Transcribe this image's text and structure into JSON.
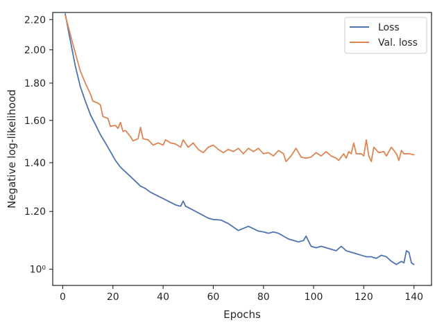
{
  "chart_data": {
    "type": "line",
    "title": "",
    "xlabel": "Epochs",
    "ylabel": "Negative log-likelihood",
    "xlim": [
      -4,
      147
    ],
    "ylim": [
      0.95,
      2.25
    ],
    "yscale": "log",
    "grid": false,
    "legend_position": "top-right",
    "x_ticks": [
      0,
      20,
      40,
      60,
      80,
      100,
      120,
      140
    ],
    "x_tick_labels": [
      "0",
      "20",
      "40",
      "60",
      "80",
      "100",
      "120",
      "140"
    ],
    "y_ticks": [
      1.0,
      1.2,
      1.4,
      1.6,
      1.8,
      2.0,
      2.2
    ],
    "y_tick_labels": [
      "10⁰",
      "1.20",
      "1.40",
      "1.60",
      "1.80",
      "2.00",
      "2.20"
    ],
    "series": [
      {
        "name": "Loss",
        "color": "#4c72b0",
        "points": [
          [
            1,
            2.24
          ],
          [
            3,
            2.06
          ],
          [
            5,
            1.9
          ],
          [
            7,
            1.78
          ],
          [
            9,
            1.7
          ],
          [
            11,
            1.63
          ],
          [
            13,
            1.58
          ],
          [
            15,
            1.53
          ],
          [
            17,
            1.49
          ],
          [
            19,
            1.45
          ],
          [
            21,
            1.41
          ],
          [
            23,
            1.38
          ],
          [
            25,
            1.36
          ],
          [
            27,
            1.34
          ],
          [
            29,
            1.32
          ],
          [
            31,
            1.3
          ],
          [
            33,
            1.29
          ],
          [
            35,
            1.275
          ],
          [
            37,
            1.265
          ],
          [
            39,
            1.255
          ],
          [
            41,
            1.245
          ],
          [
            43,
            1.235
          ],
          [
            45,
            1.225
          ],
          [
            47,
            1.22
          ],
          [
            48,
            1.24
          ],
          [
            49,
            1.22
          ],
          [
            52,
            1.205
          ],
          [
            55,
            1.19
          ],
          [
            58,
            1.175
          ],
          [
            60,
            1.17
          ],
          [
            63,
            1.168
          ],
          [
            66,
            1.155
          ],
          [
            70,
            1.13
          ],
          [
            74,
            1.145
          ],
          [
            78,
            1.128
          ],
          [
            80,
            1.125
          ],
          [
            82,
            1.12
          ],
          [
            84,
            1.125
          ],
          [
            86,
            1.12
          ],
          [
            88,
            1.11
          ],
          [
            90,
            1.1
          ],
          [
            92,
            1.095
          ],
          [
            94,
            1.09
          ],
          [
            96,
            1.095
          ],
          [
            97,
            1.11
          ],
          [
            99,
            1.075
          ],
          [
            101,
            1.07
          ],
          [
            103,
            1.075
          ],
          [
            105,
            1.07
          ],
          [
            107,
            1.065
          ],
          [
            109,
            1.06
          ],
          [
            111,
            1.075
          ],
          [
            113,
            1.06
          ],
          [
            115,
            1.055
          ],
          [
            117,
            1.05
          ],
          [
            119,
            1.045
          ],
          [
            121,
            1.04
          ],
          [
            123,
            1.04
          ],
          [
            125,
            1.035
          ],
          [
            127,
            1.045
          ],
          [
            129,
            1.04
          ],
          [
            131,
            1.025
          ],
          [
            133,
            1.015
          ],
          [
            135,
            1.025
          ],
          [
            136,
            1.02
          ],
          [
            137,
            1.06
          ],
          [
            138,
            1.055
          ],
          [
            139,
            1.02
          ],
          [
            140,
            1.015
          ]
        ]
      },
      {
        "name": "Val. loss",
        "color": "#dd8452",
        "points": [
          [
            1,
            2.23
          ],
          [
            3,
            2.1
          ],
          [
            5,
            1.98
          ],
          [
            7,
            1.87
          ],
          [
            9,
            1.8
          ],
          [
            11,
            1.74
          ],
          [
            12,
            1.7
          ],
          [
            14,
            1.69
          ],
          [
            15,
            1.68
          ],
          [
            16,
            1.62
          ],
          [
            18,
            1.61
          ],
          [
            19,
            1.57
          ],
          [
            21,
            1.575
          ],
          [
            22,
            1.56
          ],
          [
            23,
            1.59
          ],
          [
            24,
            1.545
          ],
          [
            25,
            1.55
          ],
          [
            27,
            1.52
          ],
          [
            28,
            1.5
          ],
          [
            30,
            1.51
          ],
          [
            31,
            1.565
          ],
          [
            32,
            1.51
          ],
          [
            34,
            1.505
          ],
          [
            36,
            1.48
          ],
          [
            38,
            1.49
          ],
          [
            40,
            1.48
          ],
          [
            41,
            1.505
          ],
          [
            43,
            1.49
          ],
          [
            45,
            1.485
          ],
          [
            47,
            1.47
          ],
          [
            48,
            1.505
          ],
          [
            50,
            1.47
          ],
          [
            52,
            1.49
          ],
          [
            54,
            1.46
          ],
          [
            56,
            1.445
          ],
          [
            58,
            1.47
          ],
          [
            60,
            1.48
          ],
          [
            62,
            1.46
          ],
          [
            64,
            1.445
          ],
          [
            66,
            1.46
          ],
          [
            68,
            1.45
          ],
          [
            70,
            1.465
          ],
          [
            72,
            1.44
          ],
          [
            74,
            1.465
          ],
          [
            76,
            1.45
          ],
          [
            78,
            1.465
          ],
          [
            80,
            1.44
          ],
          [
            82,
            1.445
          ],
          [
            84,
            1.43
          ],
          [
            86,
            1.455
          ],
          [
            88,
            1.44
          ],
          [
            89,
            1.405
          ],
          [
            91,
            1.43
          ],
          [
            93,
            1.465
          ],
          [
            95,
            1.425
          ],
          [
            97,
            1.42
          ],
          [
            99,
            1.425
          ],
          [
            101,
            1.445
          ],
          [
            103,
            1.43
          ],
          [
            105,
            1.45
          ],
          [
            107,
            1.43
          ],
          [
            109,
            1.42
          ],
          [
            110,
            1.41
          ],
          [
            112,
            1.44
          ],
          [
            113,
            1.42
          ],
          [
            114,
            1.45
          ],
          [
            115,
            1.44
          ],
          [
            116,
            1.49
          ],
          [
            117,
            1.44
          ],
          [
            119,
            1.44
          ],
          [
            120,
            1.43
          ],
          [
            121,
            1.505
          ],
          [
            122,
            1.43
          ],
          [
            123,
            1.405
          ],
          [
            124,
            1.47
          ],
          [
            126,
            1.445
          ],
          [
            128,
            1.45
          ],
          [
            129,
            1.43
          ],
          [
            131,
            1.47
          ],
          [
            133,
            1.44
          ],
          [
            134,
            1.41
          ],
          [
            135,
            1.455
          ],
          [
            136,
            1.44
          ],
          [
            138,
            1.44
          ],
          [
            140,
            1.435
          ]
        ]
      }
    ]
  }
}
